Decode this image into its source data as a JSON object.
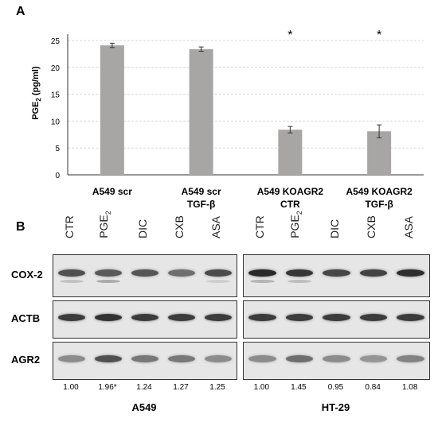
{
  "panel_a": {
    "letter": "A",
    "chart_data": {
      "type": "bar",
      "ylabel_main": "PGE",
      "ylabel_sub": "2",
      "ylabel_unit": " (pg/ml)",
      "ylim": [
        0,
        25
      ],
      "yticks": [
        "0",
        "5",
        "10",
        "15",
        "20",
        "25"
      ],
      "grid": true,
      "bar_color": "#a8a5a5",
      "categories": [
        {
          "line1": "A549 scr",
          "line2": ""
        },
        {
          "line1": "A549 scr",
          "line2": "TGF-β"
        },
        {
          "line1": "A549 KOAGR2",
          "line2": "CTR"
        },
        {
          "line1": "A549 KOAGR2",
          "line2": "TGF-β"
        }
      ],
      "values": [
        24.1,
        23.4,
        8.4,
        8.1
      ],
      "errors": [
        0.4,
        0.4,
        0.6,
        1.2
      ],
      "significance": [
        "",
        "",
        "*",
        "*"
      ]
    }
  },
  "panel_b": {
    "letter": "B",
    "lanes": [
      {
        "main": "CTR",
        "sub": ""
      },
      {
        "main": "PGE",
        "sub": "2"
      },
      {
        "main": "DIC",
        "sub": ""
      },
      {
        "main": "CXB",
        "sub": ""
      },
      {
        "main": "ASA",
        "sub": ""
      }
    ],
    "rows": [
      "COX-2",
      "ACTB",
      "AGR2"
    ],
    "cell_lines": [
      {
        "name": "A549",
        "quant": [
          "1.00",
          "1.96*",
          "1.24",
          "1.27",
          "1.25"
        ]
      },
      {
        "name": "HT-29",
        "quant": [
          "1.00",
          "1.45",
          "0.95",
          "0.84",
          "1.08"
        ]
      }
    ]
  }
}
